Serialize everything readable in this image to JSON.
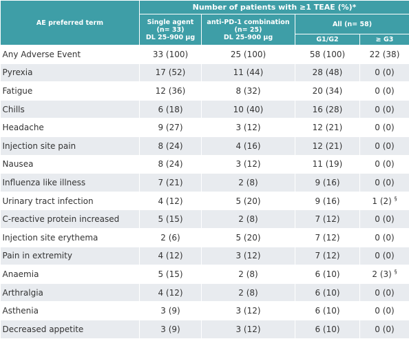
{
  "header": {
    "term": "AE preferred term",
    "group": "Number of patients with ≥1 TEAE (%)*",
    "columns": [
      [
        "Single agent",
        "(n= 33)",
        "DL 25-900 µg"
      ],
      [
        "anti-PD-1 combination",
        "(n= 25)",
        "DL 25-900 µg"
      ]
    ],
    "all": "All (n= 58)",
    "grades": [
      "G1/G2",
      "≥ G3"
    ]
  },
  "table": {
    "rows": [
      [
        "Any Adverse Event",
        "33 (100)",
        "25 (100)",
        "58 (100)",
        "22 (38)"
      ],
      [
        "Pyrexia",
        "17 (52)",
        "11 (44)",
        "28 (48)",
        "0 (0)"
      ],
      [
        "Fatigue",
        "12 (36)",
        "8 (32)",
        "20 (34)",
        "0 (0)"
      ],
      [
        "Chills",
        "6 (18)",
        "10 (40)",
        "16 (28)",
        "0 (0)"
      ],
      [
        "Headache",
        "9 (27)",
        "3 (12)",
        "12 (21)",
        "0 (0)"
      ],
      [
        "Injection site pain",
        "8 (24)",
        "4 (16)",
        "12 (21)",
        "0 (0)"
      ],
      [
        "Nausea",
        "8 (24)",
        "3 (12)",
        "11 (19)",
        "0 (0)"
      ],
      [
        "Influenza like illness",
        "7 (21)",
        "2 (8)",
        "9 (16)",
        "0 (0)"
      ],
      [
        "Urinary tract infection",
        "4 (12)",
        "5 (20)",
        "9 (16)",
        {
          "text": "1 (2)",
          "sup": "§"
        }
      ],
      [
        "C-reactive protein increased",
        "5 (15)",
        "2 (8)",
        "7 (12)",
        "0 (0)"
      ],
      [
        "Injection site erythema",
        "2 (6)",
        "5 (20)",
        "7 (12)",
        "0 (0)"
      ],
      [
        "Pain in extremity",
        "4 (12)",
        "3 (12)",
        "7 (12)",
        "0 (0)"
      ],
      [
        "Anaemia",
        "5 (15)",
        "2 (8)",
        "6 (10)",
        {
          "text": "2 (3)",
          "sup": "§"
        }
      ],
      [
        "Arthralgia",
        "4 (12)",
        "2 (8)",
        "6 (10)",
        "0 (0)"
      ],
      [
        "Asthenia",
        "3 (9)",
        "3 (12)",
        "6 (10)",
        "0 (0)"
      ],
      [
        "Decreased appetite",
        "3 (9)",
        "3 (12)",
        "6 (10)",
        "0 (0)"
      ]
    ]
  }
}
